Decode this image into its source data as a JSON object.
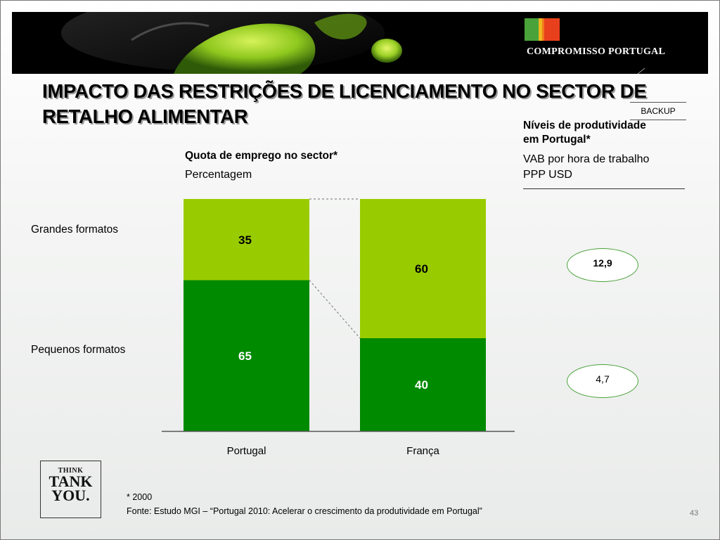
{
  "header": {
    "brand": "COMPROMISSO PORTUGAL",
    "brand_colors": [
      "#4aa23a",
      "#f0b81e",
      "#e8401c",
      "#e8401c"
    ]
  },
  "title": "IMPACTO DAS RESTRIÇÕES DE LICENCIAMENTO NO SECTOR DE RETALHO ALIMENTAR",
  "backup_label": "BACKUP",
  "left_panel": {
    "heading": "Quota de emprego no sector*",
    "unit": "Percentagem",
    "row_labels": [
      "Grandes formatos",
      "Pequenos formatos"
    ]
  },
  "right_panel": {
    "heading_line1": "Níveis de produtividade",
    "heading_line2": "em Portugal*",
    "sub_line1": "VAB por hora de trabalho",
    "sub_line2": "PPP USD",
    "values": [
      "12,9",
      "4,7"
    ]
  },
  "chart_data": {
    "type": "bar",
    "stacked": true,
    "categories": [
      "Portugal",
      "França"
    ],
    "series": [
      {
        "name": "Pequenos formatos",
        "values": [
          65,
          40
        ],
        "color": "#008a00"
      },
      {
        "name": "Grandes formatos",
        "values": [
          35,
          60
        ],
        "color": "#99cc00"
      }
    ],
    "title": "Quota de emprego no sector*",
    "ylabel": "Percentagem",
    "ylim": [
      0,
      100
    ]
  },
  "think_tank": {
    "line1": "THINK",
    "line2": "TANK",
    "line3": "YOU."
  },
  "footnote": "* 2000",
  "source": "Fonte: Estudo MGI – “Portugal 2010: Acelerar o crescimento da produtividade em Portugal”",
  "page_number": "43"
}
